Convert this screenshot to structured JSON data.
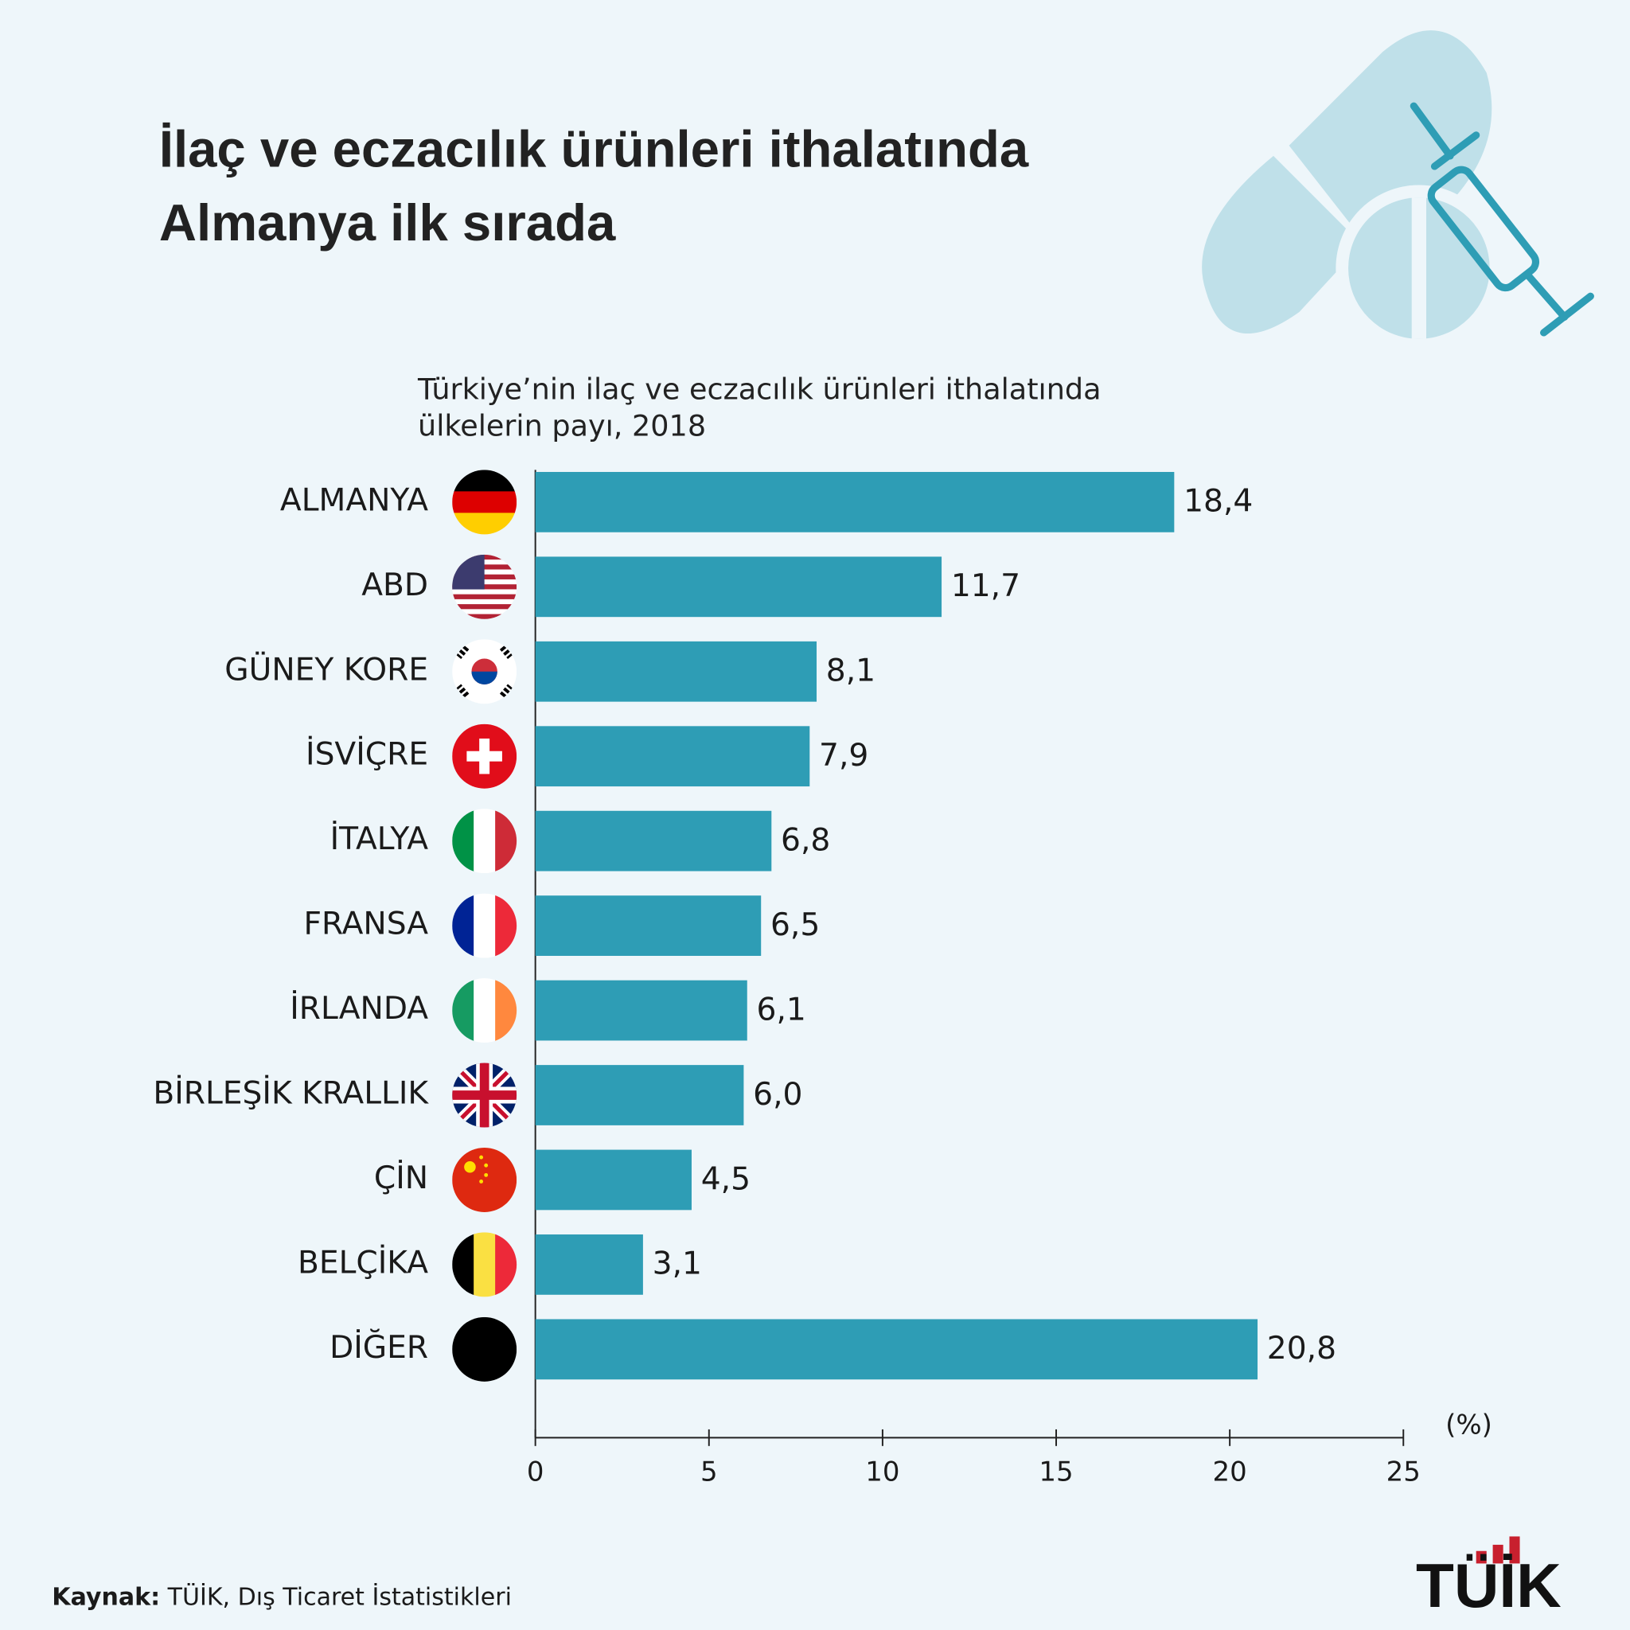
{
  "chart_data": {
    "type": "barh",
    "title": [
      "İlaç ve eczacılık ürünleri ithalatında",
      "Almanya ilk sırada"
    ],
    "subtitle": [
      "Türkiye’nin ilaç ve eczacılık ürünleri ithalatında",
      "ülkelerin payı, 2018"
    ],
    "categories": [
      "ALMANYA",
      "ABD",
      "GÜNEY KORE",
      "İSVİÇRE",
      "İTALYA",
      "FRANSA",
      "İRLANDA",
      "BİRLEŞİK KRALLIK",
      "ÇİN",
      "BELÇİKA",
      "DİĞER"
    ],
    "values": [
      18.4,
      11.7,
      8.1,
      7.9,
      6.8,
      6.5,
      6.1,
      6.0,
      4.5,
      3.1,
      20.8
    ],
    "value_labels": [
      "18,4",
      "11,7",
      "8,1",
      "7,9",
      "6,8",
      "6,5",
      "6,1",
      "6,0",
      "4,5",
      "3,1",
      "20,8"
    ],
    "color": "#2e9db5",
    "xlim": [
      0,
      25
    ],
    "xticks": [
      0,
      5,
      10,
      15,
      20,
      25
    ],
    "x_unit": "(%)",
    "source_label": "Kaynak:",
    "source": "TÜİK, Dış Ticaret İstatistikleri",
    "logo": "TÜİK"
  }
}
